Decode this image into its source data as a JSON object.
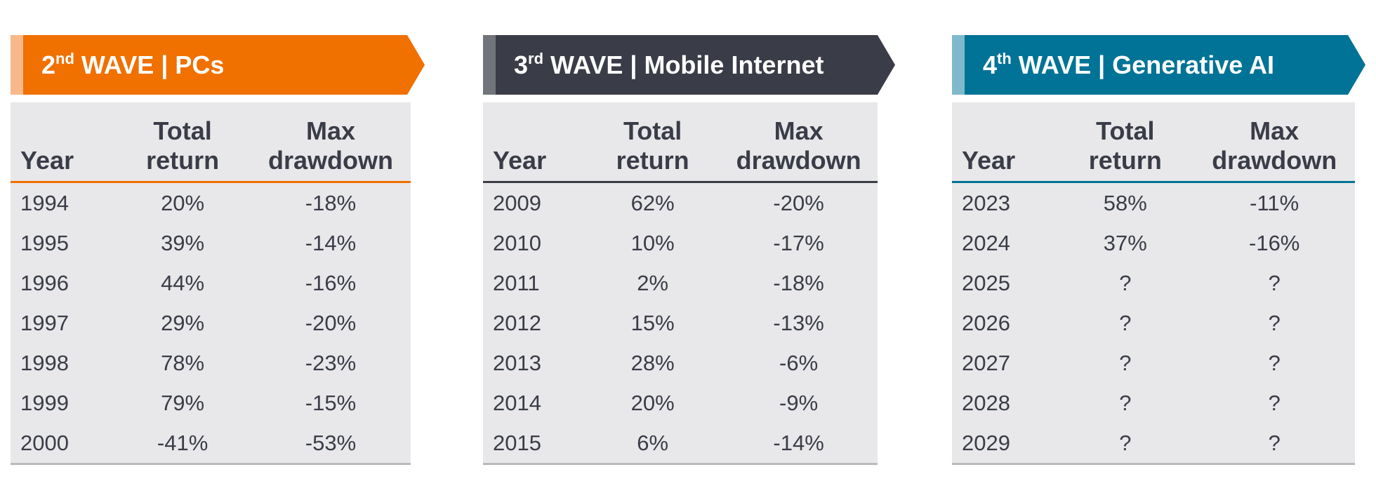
{
  "columns": {
    "year": "Year",
    "total_return": "Total return",
    "max_drawdown": "Max drawdown"
  },
  "waves": [
    {
      "ordinal": "2",
      "suffix": "nd",
      "title": " WAVE | PCs",
      "color": "#f07000",
      "accent": "#f8b88a",
      "rows": [
        [
          "1994",
          "20%",
          "-18%"
        ],
        [
          "1995",
          "39%",
          "-14%"
        ],
        [
          "1996",
          "44%",
          "-16%"
        ],
        [
          "1997",
          "29%",
          "-20%"
        ],
        [
          "1998",
          "78%",
          "-23%"
        ],
        [
          "1999",
          "79%",
          "-15%"
        ],
        [
          "2000",
          "-41%",
          "-53%"
        ]
      ]
    },
    {
      "ordinal": "3",
      "suffix": "rd",
      "title": " WAVE | Mobile Internet",
      "color": "#3a3d47",
      "accent": "#72747c",
      "rows": [
        [
          "2009",
          "62%",
          "-20%"
        ],
        [
          "2010",
          "10%",
          "-17%"
        ],
        [
          "2011",
          "2%",
          "-18%"
        ],
        [
          "2012",
          "15%",
          "-13%"
        ],
        [
          "2013",
          "28%",
          "-6%"
        ],
        [
          "2014",
          "20%",
          "-9%"
        ],
        [
          "2015",
          "6%",
          "-14%"
        ]
      ]
    },
    {
      "ordinal": "4",
      "suffix": "th",
      "title": " WAVE | Generative AI",
      "color": "#007396",
      "accent": "#80b9cb",
      "rows": [
        [
          "2023",
          "58%",
          "-11%"
        ],
        [
          "2024",
          "37%",
          "-16%"
        ],
        [
          "2025",
          "?",
          "?"
        ],
        [
          "2026",
          "?",
          "?"
        ],
        [
          "2027",
          "?",
          "?"
        ],
        [
          "2028",
          "?",
          "?"
        ],
        [
          "2029",
          "?",
          "?"
        ]
      ]
    }
  ]
}
